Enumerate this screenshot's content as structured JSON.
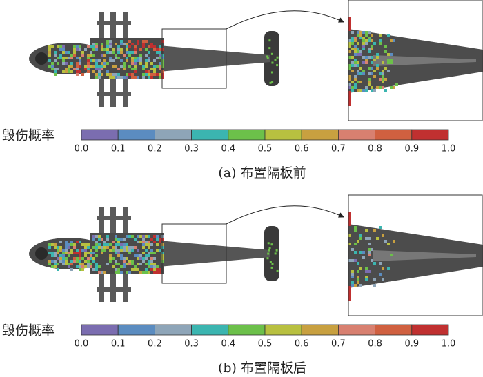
{
  "colormap": [
    "#7b6db0",
    "#5b8cc0",
    "#8ea5b8",
    "#3bb5b0",
    "#6cc04a",
    "#b8c040",
    "#c8a040",
    "#d88070",
    "#d06040",
    "#c03030"
  ],
  "panels": [
    {
      "caption": "(a) 布置隔板前",
      "colorbar": {
        "label": "毁伤概率",
        "ticks": [
          "0.0",
          "0.1",
          "0.2",
          "0.3",
          "0.4",
          "0.5",
          "0.6",
          "0.7",
          "0.8",
          "0.9",
          "1.0"
        ]
      }
    },
    {
      "caption": "(b) 布置隔板后",
      "colorbar": {
        "label": "毁伤概率",
        "ticks": [
          "0.0",
          "0.1",
          "0.2",
          "0.3",
          "0.4",
          "0.5",
          "0.6",
          "0.7",
          "0.8",
          "0.9",
          "1.0"
        ]
      }
    }
  ]
}
